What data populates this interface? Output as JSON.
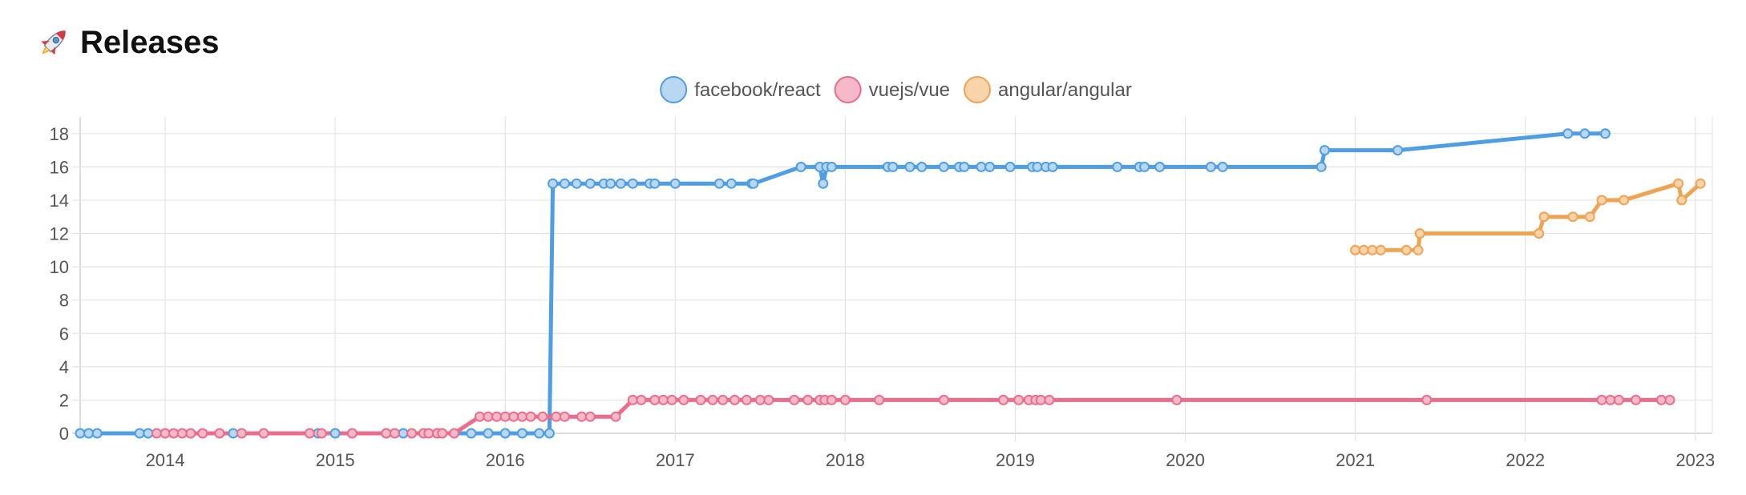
{
  "header": {
    "title": "Releases",
    "icon": "rocket-icon"
  },
  "chart_data": {
    "type": "line",
    "title": "Releases",
    "xlabel": "",
    "ylabel": "",
    "xlim": [
      2013.5,
      2023.1
    ],
    "ylim": [
      0,
      19
    ],
    "x_ticks": [
      "2014",
      "2015",
      "2016",
      "2017",
      "2018",
      "2019",
      "2020",
      "2021",
      "2022",
      "2023"
    ],
    "y_ticks": [
      "0",
      "2",
      "4",
      "6",
      "8",
      "10",
      "12",
      "14",
      "16",
      "18"
    ],
    "grid": true,
    "legend_position": "top",
    "series": [
      {
        "name": "facebook/react",
        "color": "#4f9de3",
        "fill": "#b7d7f3",
        "step": true,
        "points": [
          [
            2013.5,
            0
          ],
          [
            2013.55,
            0
          ],
          [
            2013.6,
            0
          ],
          [
            2013.85,
            0
          ],
          [
            2013.9,
            0
          ],
          [
            2014.4,
            0
          ],
          [
            2014.9,
            0
          ],
          [
            2015.0,
            0
          ],
          [
            2015.3,
            0
          ],
          [
            2015.4,
            0
          ],
          [
            2015.6,
            0
          ],
          [
            2015.8,
            0
          ],
          [
            2015.9,
            0
          ],
          [
            2016.0,
            0
          ],
          [
            2016.1,
            0
          ],
          [
            2016.2,
            0
          ],
          [
            2016.26,
            0
          ],
          [
            2016.28,
            15
          ],
          [
            2016.35,
            15
          ],
          [
            2016.42,
            15
          ],
          [
            2016.5,
            15
          ],
          [
            2016.58,
            15
          ],
          [
            2016.62,
            15
          ],
          [
            2016.68,
            15
          ],
          [
            2016.75,
            15
          ],
          [
            2016.85,
            15
          ],
          [
            2016.88,
            15
          ],
          [
            2017.0,
            15
          ],
          [
            2017.26,
            15
          ],
          [
            2017.33,
            15
          ],
          [
            2017.45,
            15
          ],
          [
            2017.46,
            15
          ],
          [
            2017.74,
            16
          ],
          [
            2017.85,
            16
          ],
          [
            2017.87,
            15
          ],
          [
            2017.89,
            16
          ],
          [
            2017.92,
            16
          ],
          [
            2018.25,
            16
          ],
          [
            2018.28,
            16
          ],
          [
            2018.38,
            16
          ],
          [
            2018.45,
            16
          ],
          [
            2018.58,
            16
          ],
          [
            2018.67,
            16
          ],
          [
            2018.7,
            16
          ],
          [
            2018.8,
            16
          ],
          [
            2018.85,
            16
          ],
          [
            2018.97,
            16
          ],
          [
            2019.1,
            16
          ],
          [
            2019.13,
            16
          ],
          [
            2019.18,
            16
          ],
          [
            2019.22,
            16
          ],
          [
            2019.6,
            16
          ],
          [
            2019.73,
            16
          ],
          [
            2019.76,
            16
          ],
          [
            2019.85,
            16
          ],
          [
            2020.15,
            16
          ],
          [
            2020.22,
            16
          ],
          [
            2020.8,
            16
          ],
          [
            2020.82,
            17
          ],
          [
            2021.25,
            17
          ],
          [
            2022.25,
            18
          ],
          [
            2022.35,
            18
          ],
          [
            2022.47,
            18
          ]
        ]
      },
      {
        "name": "vuejs/vue",
        "color": "#ea6d8c",
        "fill": "#f5b9c9",
        "step": false,
        "points": [
          [
            2013.95,
            0
          ],
          [
            2014.0,
            0
          ],
          [
            2014.05,
            0
          ],
          [
            2014.1,
            0
          ],
          [
            2014.15,
            0
          ],
          [
            2014.22,
            0
          ],
          [
            2014.32,
            0
          ],
          [
            2014.45,
            0
          ],
          [
            2014.58,
            0
          ],
          [
            2014.85,
            0
          ],
          [
            2014.92,
            0
          ],
          [
            2015.1,
            0
          ],
          [
            2015.3,
            0
          ],
          [
            2015.35,
            0
          ],
          [
            2015.45,
            0
          ],
          [
            2015.52,
            0
          ],
          [
            2015.55,
            0
          ],
          [
            2015.6,
            0
          ],
          [
            2015.63,
            0
          ],
          [
            2015.7,
            0
          ],
          [
            2015.85,
            1
          ],
          [
            2015.9,
            1
          ],
          [
            2015.95,
            1
          ],
          [
            2016.0,
            1
          ],
          [
            2016.05,
            1
          ],
          [
            2016.1,
            1
          ],
          [
            2016.15,
            1
          ],
          [
            2016.22,
            1
          ],
          [
            2016.3,
            1
          ],
          [
            2016.35,
            1
          ],
          [
            2016.45,
            1
          ],
          [
            2016.5,
            1
          ],
          [
            2016.65,
            1
          ],
          [
            2016.75,
            2
          ],
          [
            2016.8,
            2
          ],
          [
            2016.88,
            2
          ],
          [
            2016.93,
            2
          ],
          [
            2016.98,
            2
          ],
          [
            2017.05,
            2
          ],
          [
            2017.15,
            2
          ],
          [
            2017.22,
            2
          ],
          [
            2017.28,
            2
          ],
          [
            2017.35,
            2
          ],
          [
            2017.42,
            2
          ],
          [
            2017.5,
            2
          ],
          [
            2017.55,
            2
          ],
          [
            2017.7,
            2
          ],
          [
            2017.78,
            2
          ],
          [
            2017.85,
            2
          ],
          [
            2017.88,
            2
          ],
          [
            2017.92,
            2
          ],
          [
            2018.0,
            2
          ],
          [
            2018.2,
            2
          ],
          [
            2018.58,
            2
          ],
          [
            2018.93,
            2
          ],
          [
            2019.02,
            2
          ],
          [
            2019.08,
            2
          ],
          [
            2019.12,
            2
          ],
          [
            2019.15,
            2
          ],
          [
            2019.2,
            2
          ],
          [
            2019.95,
            2
          ],
          [
            2021.42,
            2
          ],
          [
            2022.45,
            2
          ],
          [
            2022.5,
            2
          ],
          [
            2022.55,
            2
          ],
          [
            2022.65,
            2
          ],
          [
            2022.8,
            2
          ],
          [
            2022.85,
            2
          ]
        ]
      },
      {
        "name": "angular/angular",
        "color": "#f0a352",
        "fill": "#f9d3aa",
        "step": true,
        "points": [
          [
            2021.0,
            11
          ],
          [
            2021.05,
            11
          ],
          [
            2021.1,
            11
          ],
          [
            2021.15,
            11
          ],
          [
            2021.3,
            11
          ],
          [
            2021.37,
            11
          ],
          [
            2021.38,
            12
          ],
          [
            2022.08,
            12
          ],
          [
            2022.11,
            13
          ],
          [
            2022.28,
            13
          ],
          [
            2022.38,
            13
          ],
          [
            2022.45,
            14
          ],
          [
            2022.58,
            14
          ],
          [
            2022.9,
            15
          ],
          [
            2022.92,
            14
          ],
          [
            2023.03,
            15
          ]
        ]
      }
    ]
  }
}
